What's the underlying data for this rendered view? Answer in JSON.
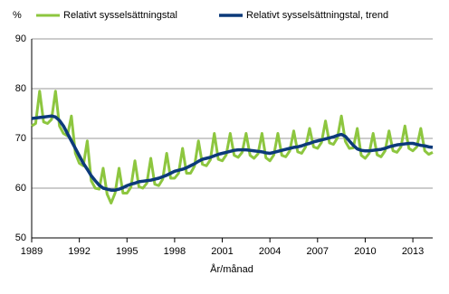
{
  "chart_data": {
    "type": "line",
    "y_axis_label": "%",
    "x_axis_label": "År/månad",
    "x": [
      1989,
      1989.25,
      1989.5,
      1989.75,
      1990,
      1990.25,
      1990.5,
      1990.75,
      1991,
      1991.25,
      1991.5,
      1991.75,
      1992,
      1992.25,
      1992.5,
      1992.75,
      1993,
      1993.25,
      1993.5,
      1993.75,
      1994,
      1994.25,
      1994.5,
      1994.75,
      1995,
      1995.25,
      1995.5,
      1995.75,
      1996,
      1996.25,
      1996.5,
      1996.75,
      1997,
      1997.25,
      1997.5,
      1997.75,
      1998,
      1998.25,
      1998.5,
      1998.75,
      1999,
      1999.25,
      1999.5,
      1999.75,
      2000,
      2000.25,
      2000.5,
      2000.75,
      2001,
      2001.25,
      2001.5,
      2001.75,
      2002,
      2002.25,
      2002.5,
      2002.75,
      2003,
      2003.25,
      2003.5,
      2003.75,
      2004,
      2004.25,
      2004.5,
      2004.75,
      2005,
      2005.25,
      2005.5,
      2005.75,
      2006,
      2006.25,
      2006.5,
      2006.75,
      2007,
      2007.25,
      2007.5,
      2007.75,
      2008,
      2008.25,
      2008.5,
      2008.75,
      2009,
      2009.25,
      2009.5,
      2009.75,
      2010,
      2010.25,
      2010.5,
      2010.75,
      2011,
      2011.25,
      2011.5,
      2011.75,
      2012,
      2012.25,
      2012.5,
      2012.75,
      2013,
      2013.25,
      2013.5,
      2013.75,
      2014,
      2014.25
    ],
    "series": [
      {
        "name": "Relativt sysselsättningstal",
        "color": "#8dc63f",
        "width": 3,
        "values": [
          72.5,
          73,
          79.5,
          73.3,
          73,
          73.8,
          79.5,
          72.5,
          71,
          70.5,
          74.5,
          67,
          65,
          64.5,
          69.5,
          61.5,
          60,
          59.8,
          64,
          58.8,
          57,
          59,
          64,
          59,
          59,
          60.2,
          65.5,
          60.3,
          60,
          61,
          66,
          60.8,
          60.5,
          61.8,
          67,
          62,
          62,
          63,
          68,
          63,
          63,
          64.4,
          69.5,
          64.8,
          64.5,
          65.7,
          71,
          65.8,
          65.5,
          66.7,
          71,
          66.6,
          66.2,
          67.2,
          71,
          66.6,
          66,
          66.9,
          71,
          66.1,
          65.5,
          66.7,
          71,
          66.6,
          66.3,
          67.5,
          71.5,
          67.3,
          67,
          68.3,
          72,
          68.3,
          68,
          69.2,
          73.5,
          69.1,
          68.8,
          70.1,
          74.5,
          69.4,
          68,
          68.1,
          72,
          66.6,
          66,
          67,
          71,
          66.7,
          66.3,
          67.5,
          71.5,
          67.5,
          67.2,
          68.3,
          72.5,
          68,
          67.5,
          68.3,
          72,
          67.5,
          66.8,
          67.2
        ]
      },
      {
        "name": "Relativt sysselsättningstal, trend",
        "color": "#0c3a7a",
        "width": 3.5,
        "values": [
          74,
          74.1,
          74.2,
          74.3,
          74.4,
          74.5,
          74.3,
          73.6,
          72.5,
          71,
          69.5,
          68,
          66.5,
          65,
          63.8,
          62.5,
          61.5,
          60.6,
          60,
          59.8,
          59.6,
          59.6,
          59.8,
          60.1,
          60.5,
          60.8,
          61,
          61.3,
          61.4,
          61.5,
          61.6,
          61.8,
          62,
          62.3,
          62.6,
          63,
          63.4,
          63.6,
          63.8,
          64.1,
          64.5,
          64.9,
          65.4,
          65.8,
          66,
          66.2,
          66.5,
          66.8,
          67,
          67.2,
          67.4,
          67.6,
          67.7,
          67.7,
          67.7,
          67.6,
          67.5,
          67.4,
          67.3,
          67.1,
          67,
          67.2,
          67.4,
          67.6,
          67.8,
          68,
          68.2,
          68.3,
          68.5,
          68.8,
          69,
          69.3,
          69.5,
          69.7,
          69.9,
          70.1,
          70.3,
          70.6,
          70.8,
          70.4,
          69.5,
          68.6,
          67.9,
          67.6,
          67.5,
          67.5,
          67.6,
          67.7,
          67.8,
          68,
          68.3,
          68.5,
          68.7,
          68.8,
          68.9,
          69,
          69,
          68.8,
          68.6,
          68.5,
          68.3,
          68.2
        ]
      }
    ],
    "xlim": [
      1989,
      2014.25
    ],
    "xticks": [
      1989,
      1992,
      1995,
      1998,
      2001,
      2004,
      2007,
      2010,
      2013
    ],
    "ylim": [
      50,
      90
    ],
    "yticks": [
      50,
      60,
      70,
      80,
      90
    ],
    "grid": true
  }
}
